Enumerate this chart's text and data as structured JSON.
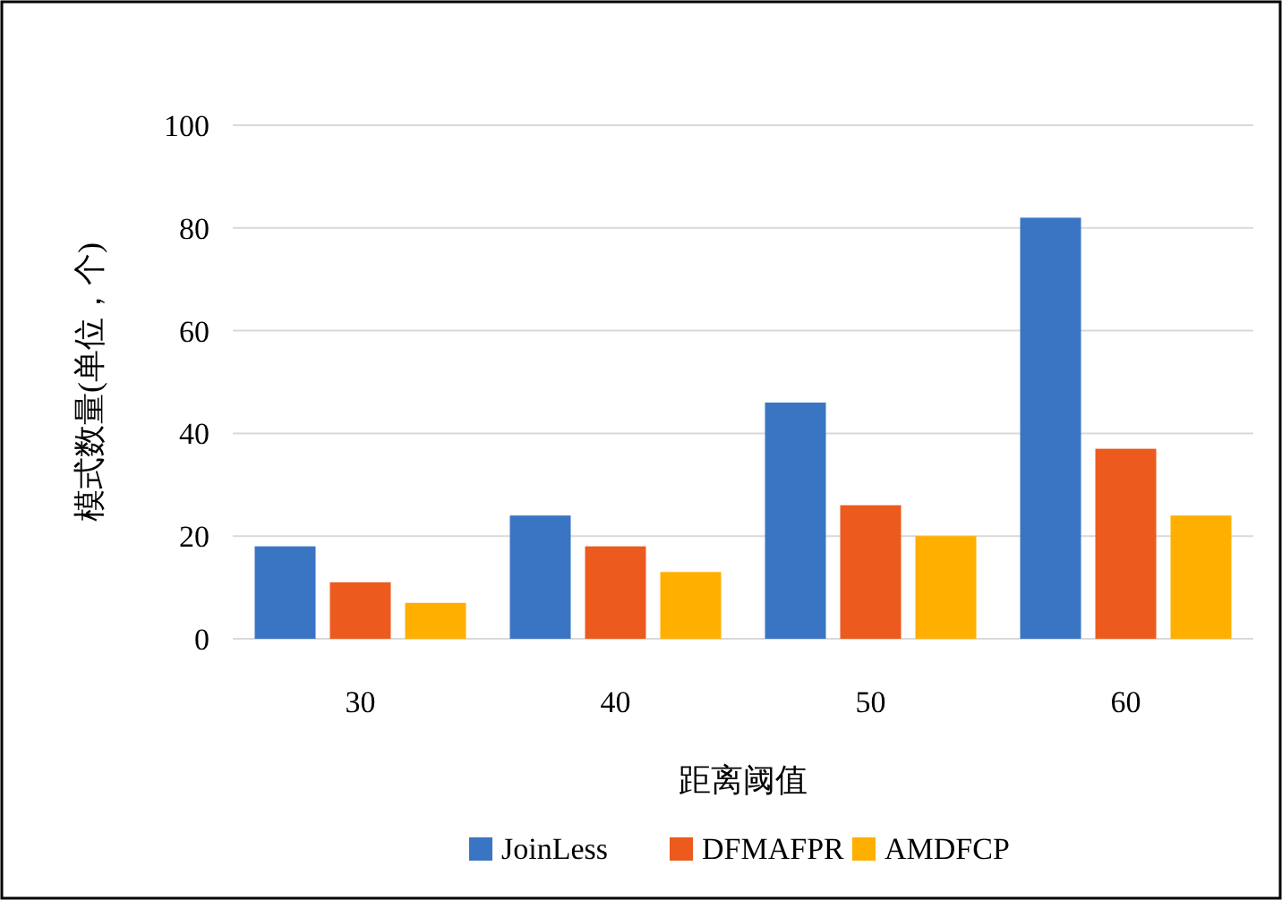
{
  "chart_data": {
    "type": "bar",
    "categories": [
      "30",
      "40",
      "50",
      "60"
    ],
    "series": [
      {
        "name": "JoinLess",
        "color": "#3a75c4",
        "values": [
          18,
          24,
          46,
          82
        ]
      },
      {
        "name": "DFMAFPR",
        "color": "#ec5a1e",
        "values": [
          11,
          18,
          26,
          37
        ]
      },
      {
        "name": "AMDFCP",
        "color": "#ffaf00",
        "values": [
          7,
          13,
          20,
          24
        ]
      }
    ],
    "ylim": [
      0,
      100
    ],
    "yticks": [
      0,
      20,
      40,
      60,
      80,
      100
    ],
    "xlabel": "距离阈值",
    "ylabel": "模式数量(单位，个)",
    "grid": "y",
    "legend": "bottom"
  }
}
